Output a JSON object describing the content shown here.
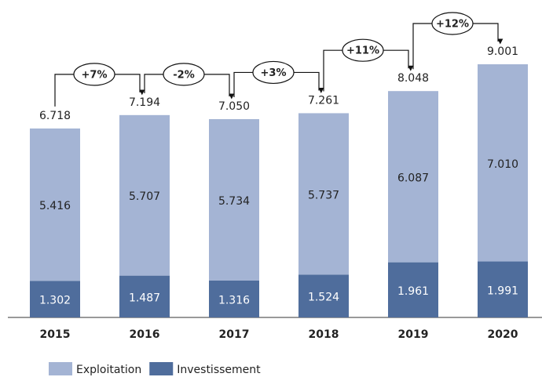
{
  "chart_data": {
    "type": "stacked_bar",
    "categories": [
      "2015",
      "2016",
      "2017",
      "2018",
      "2019",
      "2020"
    ],
    "series": [
      {
        "name": "Investissement",
        "color": "#4f6d9c",
        "values": [
          1.302,
          1.487,
          1.316,
          1.524,
          1.961,
          1.991
        ],
        "value_labels": [
          "1.302",
          "1.487",
          "1.316",
          "1.524",
          "1.961",
          "1.991"
        ]
      },
      {
        "name": "Exploitation",
        "color": "#a4b4d4",
        "values": [
          5.416,
          5.707,
          5.734,
          5.737,
          6.087,
          7.01
        ],
        "value_labels": [
          "5.416",
          "5.707",
          "5.734",
          "5.737",
          "6.087",
          "7.010"
        ]
      }
    ],
    "totals": [
      6.718,
      7.194,
      7.05,
      7.261,
      8.048,
      9.001
    ],
    "total_labels": [
      "6.718",
      "7.194",
      "7.050",
      "7.261",
      "8.048",
      "9.001"
    ],
    "change_labels": [
      "+7%",
      "-2%",
      "+3%",
      "+11%",
      "+12%"
    ],
    "legend": "bottom-left"
  }
}
